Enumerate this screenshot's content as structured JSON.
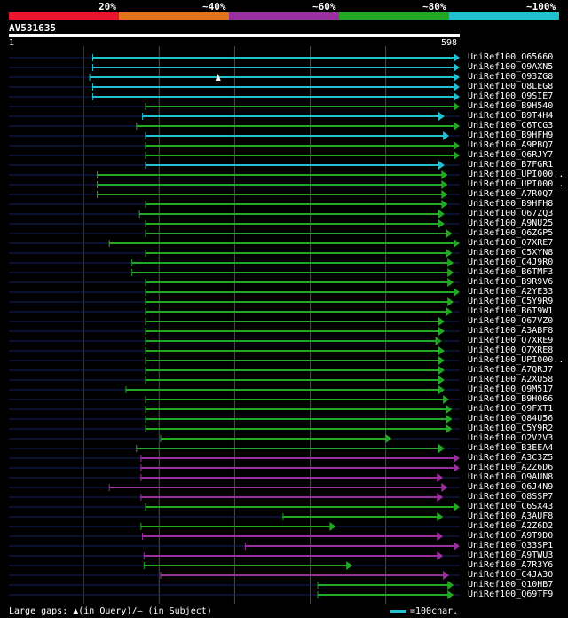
{
  "scale": [
    {
      "label": "20%",
      "color": "#e8152e"
    },
    {
      "label": "~40%",
      "color": "#e0731c"
    },
    {
      "label": "~60%",
      "color": "#9a30a0"
    },
    {
      "label": "~80%",
      "color": "#22a822"
    },
    {
      "label": "~100%",
      "color": "#20c0d0"
    }
  ],
  "query": {
    "id": "AV531635",
    "start": "1",
    "end": "598",
    "length": 598
  },
  "colors": {
    "cyan": "#20c0d0",
    "green": "#22a822",
    "purple": "#9a30a0",
    "navy": "#142060",
    "grid": "#4a4a4a"
  },
  "hits": [
    {
      "label": "UniRef100_Q65660",
      "qs": 112,
      "qe": 598,
      "c": "cyan"
    },
    {
      "label": "UniRef100_Q9AXN5",
      "qs": 112,
      "qe": 598,
      "c": "cyan"
    },
    {
      "label": "UniRef100_Q93ZG8",
      "qs": 108,
      "qe": 598,
      "c": "cyan",
      "gap": 278
    },
    {
      "label": "UniRef100_Q8LEG8",
      "qs": 112,
      "qe": 598,
      "c": "cyan"
    },
    {
      "label": "UniRef100_Q9SIE7",
      "qs": 112,
      "qe": 598,
      "c": "cyan"
    },
    {
      "label": "UniRef100_B9H540",
      "qs": 182,
      "qe": 598,
      "c": "green"
    },
    {
      "label": "UniRef100_B9T4H4",
      "qs": 178,
      "qe": 578,
      "c": "cyan"
    },
    {
      "label": "UniRef100_C6TCG3",
      "qs": 170,
      "qe": 598,
      "c": "green"
    },
    {
      "label": "UniRef100_B9HFH9",
      "qs": 182,
      "qe": 584,
      "c": "cyan"
    },
    {
      "label": "UniRef100_A9PBQ7",
      "qs": 182,
      "qe": 598,
      "c": "green"
    },
    {
      "label": "UniRef100_Q6RJY7",
      "qs": 182,
      "qe": 598,
      "c": "green"
    },
    {
      "label": "UniRef100_B7FGR1",
      "qs": 182,
      "qe": 578,
      "c": "cyan"
    },
    {
      "label": "UniRef100_UPI000..",
      "qs": 118,
      "qe": 582,
      "c": "green"
    },
    {
      "label": "UniRef100_UPI000..",
      "qs": 118,
      "qe": 582,
      "c": "green"
    },
    {
      "label": "UniRef100_A7R0Q7",
      "qs": 118,
      "qe": 582,
      "c": "green"
    },
    {
      "label": "UniRef100_B9HFH8",
      "qs": 182,
      "qe": 582,
      "c": "green"
    },
    {
      "label": "UniRef100_Q67ZQ3",
      "qs": 174,
      "qe": 578,
      "c": "green"
    },
    {
      "label": "UniRef100_A9NU25",
      "qs": 182,
      "qe": 578,
      "c": "green"
    },
    {
      "label": "UniRef100_Q6ZGP5",
      "qs": 182,
      "qe": 588,
      "c": "green"
    },
    {
      "label": "UniRef100_Q7XRE7",
      "qs": 134,
      "qe": 598,
      "c": "green"
    },
    {
      "label": "UniRef100_C5XYN8",
      "qs": 182,
      "qe": 588,
      "c": "green"
    },
    {
      "label": "UniRef100_C4J9R0",
      "qs": 164,
      "qe": 590,
      "c": "green"
    },
    {
      "label": "UniRef100_B6TMF3",
      "qs": 164,
      "qe": 590,
      "c": "green"
    },
    {
      "label": "UniRef100_B9R9V6",
      "qs": 182,
      "qe": 590,
      "c": "green"
    },
    {
      "label": "UniRef100_A2YE33",
      "qs": 182,
      "qe": 598,
      "c": "green"
    },
    {
      "label": "UniRef100_C5Y9R9",
      "qs": 182,
      "qe": 590,
      "c": "green"
    },
    {
      "label": "UniRef100_B6T9W1",
      "qs": 182,
      "qe": 588,
      "c": "green"
    },
    {
      "label": "UniRef100_Q67VZ0",
      "qs": 182,
      "qe": 578,
      "c": "green"
    },
    {
      "label": "UniRef100_A3ABF8",
      "qs": 182,
      "qe": 578,
      "c": "green"
    },
    {
      "label": "UniRef100_Q7XRE9",
      "qs": 182,
      "qe": 574,
      "c": "green"
    },
    {
      "label": "UniRef100_Q7XRE8",
      "qs": 182,
      "qe": 578,
      "c": "green"
    },
    {
      "label": "UniRef100_UPI000..",
      "qs": 182,
      "qe": 578,
      "c": "green"
    },
    {
      "label": "UniRef100_A7QRJ7",
      "qs": 182,
      "qe": 578,
      "c": "green"
    },
    {
      "label": "UniRef100_A2XU58",
      "qs": 182,
      "qe": 578,
      "c": "green"
    },
    {
      "label": "UniRef100_Q9M517",
      "qs": 156,
      "qe": 578,
      "c": "green"
    },
    {
      "label": "UniRef100_B9H066",
      "qs": 182,
      "qe": 584,
      "c": "green"
    },
    {
      "label": "UniRef100_Q9FXT1",
      "qs": 182,
      "qe": 588,
      "c": "green"
    },
    {
      "label": "UniRef100_Q84U56",
      "qs": 182,
      "qe": 588,
      "c": "green"
    },
    {
      "label": "UniRef100_C5Y9R2",
      "qs": 182,
      "qe": 588,
      "c": "green"
    },
    {
      "label": "UniRef100_Q2V2V3",
      "qs": 202,
      "qe": 508,
      "c": "green"
    },
    {
      "label": "UniRef100_B3EEA4",
      "qs": 170,
      "qe": 578,
      "c": "green"
    },
    {
      "label": "UniRef100_A3C3Z5",
      "qs": 176,
      "qe": 598,
      "c": "purple"
    },
    {
      "label": "UniRef100_A2Z6D6",
      "qs": 176,
      "qe": 598,
      "c": "purple"
    },
    {
      "label": "UniRef100_Q9AUN8",
      "qs": 176,
      "qe": 576,
      "c": "purple"
    },
    {
      "label": "UniRef100_Q6J4N9",
      "qs": 134,
      "qe": 582,
      "c": "purple"
    },
    {
      "label": "UniRef100_Q8SSP7",
      "qs": 176,
      "qe": 576,
      "c": "purple"
    },
    {
      "label": "UniRef100_C6SX43",
      "qs": 182,
      "qe": 598,
      "c": "green"
    },
    {
      "label": "UniRef100_A3AUF8",
      "qs": 364,
      "qe": 576,
      "c": "green"
    },
    {
      "label": "UniRef100_A2Z6D2",
      "qs": 176,
      "qe": 434,
      "c": "green"
    },
    {
      "label": "UniRef100_A9T9D0",
      "qs": 178,
      "qe": 576,
      "c": "purple"
    },
    {
      "label": "UniRef100_Q33SP1",
      "qs": 314,
      "qe": 598,
      "c": "purple"
    },
    {
      "label": "UniRef100_A9TWU3",
      "qs": 180,
      "qe": 576,
      "c": "purple"
    },
    {
      "label": "UniRef100_A7R3Y6",
      "qs": 180,
      "qe": 456,
      "c": "green"
    },
    {
      "label": "UniRef100_C4JA30",
      "qs": 202,
      "qe": 584,
      "c": "purple"
    },
    {
      "label": "UniRef100_Q10HB7",
      "qs": 410,
      "qe": 590,
      "c": "green"
    },
    {
      "label": "UniRef100_Q69TF9",
      "qs": 410,
      "qe": 590,
      "c": "green"
    }
  ],
  "legend": {
    "gaps": "Large gaps: ▲(in Query)/– (in Subject)",
    "scale": "=100char."
  }
}
